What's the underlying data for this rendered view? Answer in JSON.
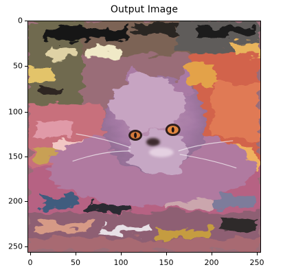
{
  "figure": {
    "title": "Output Image",
    "image_subject": "stylized painting of a cat",
    "x_ticks": [
      "0",
      "50",
      "100",
      "150",
      "200",
      "250"
    ],
    "y_ticks": [
      "0",
      "50",
      "100",
      "150",
      "200",
      "250"
    ]
  },
  "colors": {
    "background": "#ffffff",
    "axis": "#000000"
  }
}
